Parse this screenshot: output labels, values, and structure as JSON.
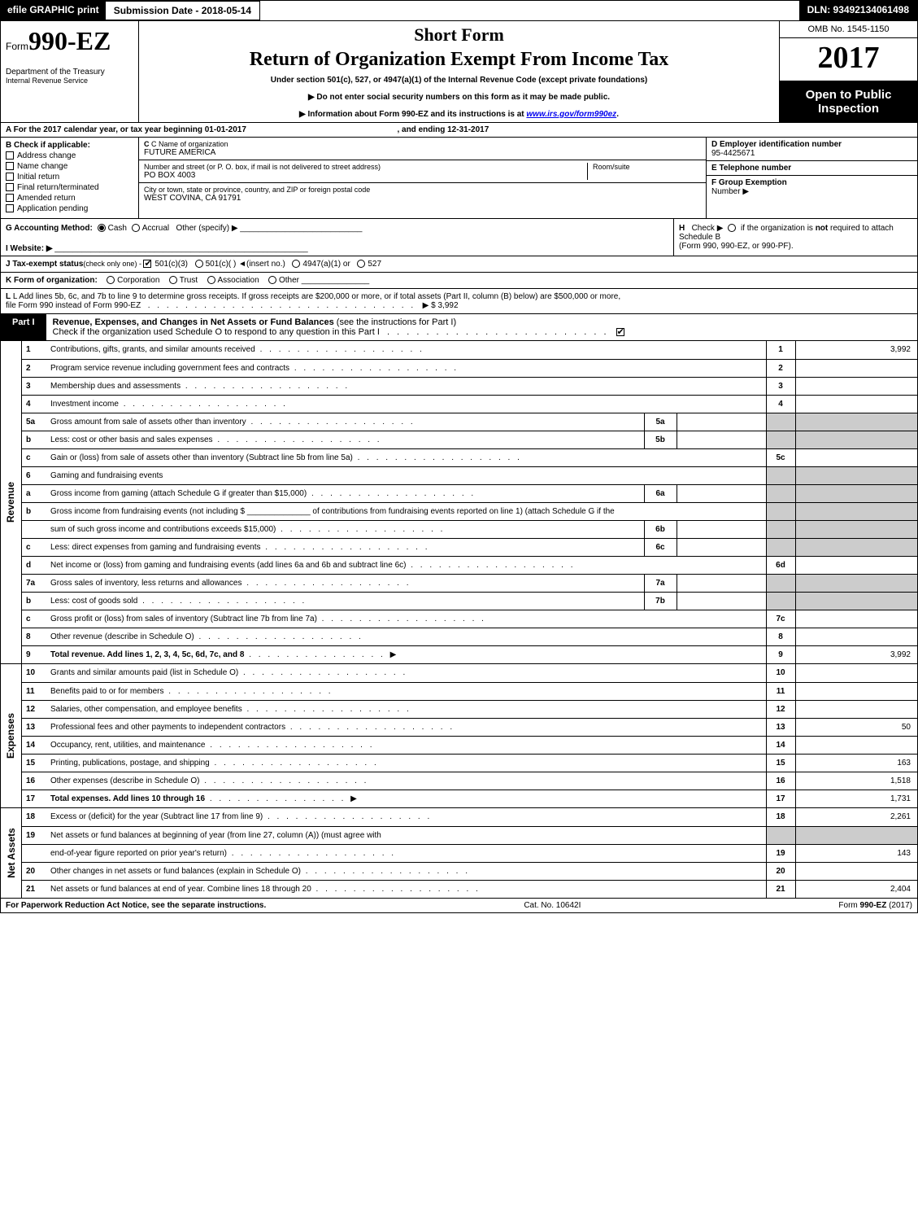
{
  "topbar": {
    "efile": "efile GRAPHIC print",
    "submission": "Submission Date - 2018-05-14",
    "dln": "DLN: 93492134061498"
  },
  "header": {
    "form_prefix": "Form",
    "form_number": "990-EZ",
    "dept1": "Department of the Treasury",
    "dept2": "Internal Revenue Service",
    "short_form": "Short Form",
    "title": "Return of Organization Exempt From Income Tax",
    "sub1": "Under section 501(c), 527, or 4947(a)(1) of the Internal Revenue Code (except private foundations)",
    "sub2a": "▶ Do not enter social security numbers on this form as it may be made public.",
    "sub2b_pre": "▶ Information about Form 990-EZ and its instructions is at ",
    "sub2b_link": "www.irs.gov/form990ez",
    "sub2b_post": ".",
    "omb": "OMB No. 1545-1150",
    "year": "2017",
    "open1": "Open to Public",
    "open2": "Inspection"
  },
  "A": {
    "prefix": "A  For the 2017 calendar year, or tax year beginning ",
    "begin": "01-01-2017",
    "mid": ", and ending ",
    "end": "12-31-2017"
  },
  "B": {
    "hd": "B  Check if applicable:",
    "items": [
      "Address change",
      "Name change",
      "Initial return",
      "Final return/terminated",
      "Amended return",
      "Application pending"
    ]
  },
  "C": {
    "lab": "C Name of organization",
    "val": "FUTURE AMERICA",
    "addr_lab": "Number and street (or P. O. box, if mail is not delivered to street address)",
    "addr": "PO BOX 4003",
    "room_lab": "Room/suite",
    "city_lab": "City or town, state or province, country, and ZIP or foreign postal code",
    "city": "WEST COVINA, CA  91791"
  },
  "D": {
    "lab": "D Employer identification number",
    "val": "95-4425671",
    "E_lab": "E Telephone number",
    "F_lab": "F Group Exemption",
    "F_lab2": "Number   ▶"
  },
  "G": {
    "lab": "G Accounting Method:",
    "cash": "Cash",
    "accrual": "Accrual",
    "other": "Other (specify) ▶",
    "website_lab": "I Website: ▶"
  },
  "H": {
    "lab": "H",
    "txt1": "Check ▶",
    "txt2": " if the organization is ",
    "not": "not",
    "txt3": " required to attach Schedule B",
    "txt4": "(Form 990, 990-EZ, or 990-PF)."
  },
  "J": {
    "pre": "J Tax-exempt status",
    "note": "(check only one) - ",
    "o1": "501(c)(3)",
    "o2": "501(c)(   )",
    "o2b": "◄(insert no.)",
    "o3": "4947(a)(1) or",
    "o4": "527"
  },
  "K": {
    "pre": "K Form of organization:",
    "items": [
      "Corporation",
      "Trust",
      "Association",
      "Other"
    ]
  },
  "L": {
    "txt1": "L Add lines 5b, 6c, and 7b to line 9 to determine gross receipts. If gross receipts are $200,000 or more, or if total assets (Part II, column (B) below) are $500,000 or more,",
    "txt2": "file Form 990 instead of Form 990-EZ",
    "amount": "▶ $ 3,992"
  },
  "partI": {
    "tag": "Part I",
    "title": "Revenue, Expenses, and Changes in Net Assets or Fund Balances ",
    "title_note": "(see the instructions for Part I)",
    "check_txt": "Check if the organization used Schedule O to respond to any question in this Part I"
  },
  "sections": {
    "revenue_label": "Revenue",
    "expenses_label": "Expenses",
    "netassets_label": "Net Assets"
  },
  "lines": [
    {
      "n": "1",
      "d": "Contributions, gifts, grants, and similar amounts received",
      "box": "1",
      "amt": "3,992"
    },
    {
      "n": "2",
      "d": "Program service revenue including government fees and contracts",
      "box": "2",
      "amt": ""
    },
    {
      "n": "3",
      "d": "Membership dues and assessments",
      "box": "3",
      "amt": ""
    },
    {
      "n": "4",
      "d": "Investment income",
      "box": "4",
      "amt": ""
    },
    {
      "n": "5a",
      "d": "Gross amount from sale of assets other than inventory",
      "mid": "5a",
      "shade": true
    },
    {
      "n": "b",
      "d": "Less: cost or other basis and sales expenses",
      "mid": "5b",
      "shade": true
    },
    {
      "n": "c",
      "d": "Gain or (loss) from sale of assets other than inventory (Subtract line 5b from line 5a)",
      "box": "5c",
      "amt": ""
    },
    {
      "n": "6",
      "d": "Gaming and fundraising events",
      "shade": true,
      "noline": true
    },
    {
      "n": "a",
      "d": "Gross income from gaming (attach Schedule G if greater than $15,000)",
      "mid": "6a",
      "shade": true
    },
    {
      "n": "b",
      "d": "Gross income from fundraising events (not including $ ______________ of contributions from fundraising events reported on line 1) (attach Schedule G if the",
      "shade": true,
      "tall": true
    },
    {
      "n": "",
      "d": "sum of such gross income and contributions exceeds $15,000)",
      "mid": "6b",
      "shade": true
    },
    {
      "n": "c",
      "d": "Less: direct expenses from gaming and fundraising events",
      "mid": "6c",
      "shade": true
    },
    {
      "n": "d",
      "d": "Net income or (loss) from gaming and fundraising events (add lines 6a and 6b and subtract line 6c)",
      "box": "6d",
      "amt": ""
    },
    {
      "n": "7a",
      "d": "Gross sales of inventory, less returns and allowances",
      "mid": "7a",
      "shade": true
    },
    {
      "n": "b",
      "d": "Less: cost of goods sold",
      "mid": "7b",
      "shade": true
    },
    {
      "n": "c",
      "d": "Gross profit or (loss) from sales of inventory (Subtract line 7b from line 7a)",
      "box": "7c",
      "amt": ""
    },
    {
      "n": "8",
      "d": "Other revenue (describe in Schedule O)",
      "box": "8",
      "amt": ""
    },
    {
      "n": "9",
      "d": "Total revenue. Add lines 1, 2, 3, 4, 5c, 6d, 7c, and 8",
      "box": "9",
      "amt": "3,992",
      "bold": true,
      "arrow": true
    }
  ],
  "exp_lines": [
    {
      "n": "10",
      "d": "Grants and similar amounts paid (list in Schedule O)",
      "box": "10",
      "amt": ""
    },
    {
      "n": "11",
      "d": "Benefits paid to or for members",
      "box": "11",
      "amt": ""
    },
    {
      "n": "12",
      "d": "Salaries, other compensation, and employee benefits",
      "box": "12",
      "amt": ""
    },
    {
      "n": "13",
      "d": "Professional fees and other payments to independent contractors",
      "box": "13",
      "amt": "50"
    },
    {
      "n": "14",
      "d": "Occupancy, rent, utilities, and maintenance",
      "box": "14",
      "amt": ""
    },
    {
      "n": "15",
      "d": "Printing, publications, postage, and shipping",
      "box": "15",
      "amt": "163"
    },
    {
      "n": "16",
      "d": "Other expenses (describe in Schedule O)",
      "box": "16",
      "amt": "1,518"
    },
    {
      "n": "17",
      "d": "Total expenses. Add lines 10 through 16",
      "box": "17",
      "amt": "1,731",
      "bold": true,
      "arrow": true
    }
  ],
  "na_lines": [
    {
      "n": "18",
      "d": "Excess or (deficit) for the year (Subtract line 17 from line 9)",
      "box": "18",
      "amt": "2,261"
    },
    {
      "n": "19",
      "d": "Net assets or fund balances at beginning of year (from line 27, column (A)) (must agree with",
      "shade": true,
      "noline": true
    },
    {
      "n": "",
      "d": "end-of-year figure reported on prior year's return)",
      "box": "19",
      "amt": "143"
    },
    {
      "n": "20",
      "d": "Other changes in net assets or fund balances (explain in Schedule O)",
      "box": "20",
      "amt": ""
    },
    {
      "n": "21",
      "d": "Net assets or fund balances at end of year. Combine lines 18 through 20",
      "box": "21",
      "amt": "2,404"
    }
  ],
  "footer": {
    "l": "For Paperwork Reduction Act Notice, see the separate instructions.",
    "c": "Cat. No. 10642I",
    "r_pre": "Form ",
    "r_form": "990-EZ",
    "r_post": " (2017)"
  },
  "colors": {
    "black": "#000000",
    "white": "#ffffff",
    "shade": "#cccccc",
    "link": "#0000ee"
  }
}
